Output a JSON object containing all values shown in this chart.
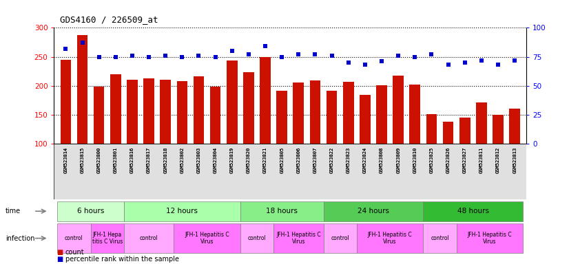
{
  "title": "GDS4160 / 226509_at",
  "samples": [
    "GSM523814",
    "GSM523815",
    "GSM523800",
    "GSM523801",
    "GSM523816",
    "GSM523817",
    "GSM523818",
    "GSM523802",
    "GSM523803",
    "GSM523804",
    "GSM523819",
    "GSM523820",
    "GSM523821",
    "GSM523805",
    "GSM523806",
    "GSM523807",
    "GSM523822",
    "GSM523823",
    "GSM523824",
    "GSM523808",
    "GSM523809",
    "GSM523810",
    "GSM523825",
    "GSM523826",
    "GSM523827",
    "GSM523811",
    "GSM523812",
    "GSM523813"
  ],
  "counts": [
    245,
    287,
    198,
    220,
    211,
    213,
    211,
    208,
    216,
    199,
    243,
    223,
    250,
    192,
    206,
    209,
    191,
    207,
    184,
    201,
    218,
    202,
    151,
    138,
    145,
    171,
    150,
    161
  ],
  "percentile_ranks": [
    82,
    87,
    75,
    75,
    76,
    75,
    76,
    75,
    76,
    75,
    80,
    77,
    84,
    75,
    77,
    77,
    76,
    70,
    68,
    71,
    76,
    75,
    77,
    68,
    70,
    72,
    68,
    72
  ],
  "bar_color": "#cc1100",
  "dot_color": "#0000cc",
  "ylim_left": [
    100,
    300
  ],
  "ylim_right": [
    0,
    100
  ],
  "yticks_left": [
    100,
    150,
    200,
    250,
    300
  ],
  "yticks_right": [
    0,
    25,
    50,
    75,
    100
  ],
  "time_groups": [
    {
      "label": "6 hours",
      "start": 0,
      "end": 4
    },
    {
      "label": "12 hours",
      "start": 4,
      "end": 11
    },
    {
      "label": "18 hours",
      "start": 11,
      "end": 16
    },
    {
      "label": "24 hours",
      "start": 16,
      "end": 22
    },
    {
      "label": "48 hours",
      "start": 22,
      "end": 28
    }
  ],
  "time_colors": [
    "#ccffcc",
    "#aaffaa",
    "#88ee88",
    "#55cc55",
    "#33bb33"
  ],
  "infection_groups": [
    {
      "label": "control",
      "start": 0,
      "end": 2,
      "type": "ctrl"
    },
    {
      "label": "JFH-1 Hepa\ntitis C Virus",
      "start": 2,
      "end": 4,
      "type": "infect"
    },
    {
      "label": "control",
      "start": 4,
      "end": 7,
      "type": "ctrl"
    },
    {
      "label": "JFH-1 Hepatitis C\nVirus",
      "start": 7,
      "end": 11,
      "type": "infect"
    },
    {
      "label": "control",
      "start": 11,
      "end": 13,
      "type": "ctrl"
    },
    {
      "label": "JFH-1 Hepatitis C\nVirus",
      "start": 13,
      "end": 16,
      "type": "infect"
    },
    {
      "label": "control",
      "start": 16,
      "end": 18,
      "type": "ctrl"
    },
    {
      "label": "JFH-1 Hepatitis C\nVirus",
      "start": 18,
      "end": 22,
      "type": "infect"
    },
    {
      "label": "control",
      "start": 22,
      "end": 24,
      "type": "ctrl"
    },
    {
      "label": "JFH-1 Hepatitis C\nVirus",
      "start": 24,
      "end": 28,
      "type": "infect"
    }
  ],
  "ctrl_color": "#ffaaff",
  "infect_color": "#ff77ff",
  "background_color": "#ffffff"
}
